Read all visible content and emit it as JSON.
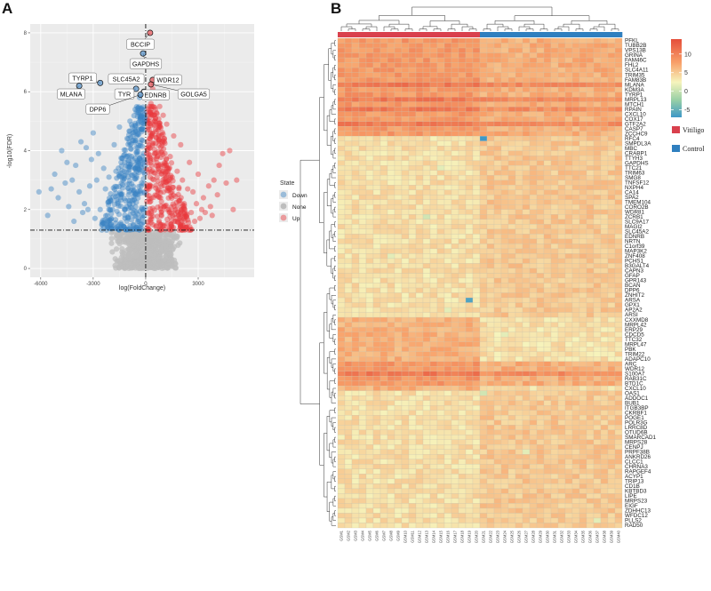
{
  "panel_a": {
    "letter": "A",
    "chart_data": {
      "type": "scatter",
      "xlabel": "log(FoldChange)",
      "ylabel": "-log10(FDR)",
      "xlim": [
        -6600,
        6200
      ],
      "ylim": [
        -0.3,
        8.3
      ],
      "x_ticks": [
        -6000,
        -3000,
        0,
        3000
      ],
      "y_ticks": [
        0,
        2,
        4,
        6,
        8
      ],
      "fdr_threshold": 1.3,
      "fc_threshold": 0,
      "legend": {
        "title": "State",
        "placement": "right",
        "entries": [
          {
            "key": "Down",
            "label": "Down",
            "color": "#3a82c4"
          },
          {
            "key": "None",
            "label": "None",
            "color": "#bdbdbd"
          },
          {
            "key": "Up",
            "label": "Up",
            "color": "#e8373c"
          }
        ]
      },
      "labeled_points": [
        {
          "name": "BCCIP",
          "x": 250,
          "y": 8.0,
          "state": "Up"
        },
        {
          "name": "GAPDHS",
          "x": -150,
          "y": 7.3,
          "state": "Down"
        },
        {
          "name": "TYRP1",
          "x": -2600,
          "y": 6.3,
          "state": "Down"
        },
        {
          "name": "MLANA",
          "x": -3800,
          "y": 6.2,
          "state": "Down"
        },
        {
          "name": "SLC45A2",
          "x": -350,
          "y": 6.4,
          "state": "Down"
        },
        {
          "name": "WDR12",
          "x": 400,
          "y": 6.4,
          "state": "Up"
        },
        {
          "name": "TYR",
          "x": -550,
          "y": 6.1,
          "state": "Down"
        },
        {
          "name": "EDNRB",
          "x": -100,
          "y": 6.0,
          "state": "Down"
        },
        {
          "name": "GOLGA5",
          "x": 300,
          "y": 6.25,
          "state": "Up"
        },
        {
          "name": "DPP6",
          "x": -300,
          "y": 5.9,
          "state": "Down"
        }
      ],
      "series": [
        {
          "name": "Up",
          "x": [
            4800,
            4400,
            5000,
            4200,
            3900,
            3600,
            3300,
            3000,
            2700,
            2500,
            2200,
            2000,
            1800,
            1600,
            1400,
            1200,
            1000,
            800,
            600,
            400,
            4600,
            4100,
            3700,
            3400,
            3100,
            2800,
            2400,
            2100,
            1900,
            1700,
            1500,
            1300,
            1100,
            900,
            700,
            500,
            300,
            3800,
            3200,
            2600,
            2300,
            1950,
            1650,
            1350,
            1050,
            850,
            650,
            450,
            250,
            5200,
            2900,
            1450
          ],
          "y": [
            4.0,
            3.9,
            2.0,
            3.5,
            3.0,
            2.8,
            2.4,
            3.2,
            2.6,
            3.6,
            2.2,
            4.2,
            3.3,
            4.5,
            3.8,
            4.9,
            5.2,
            5.5,
            5.8,
            6.1,
            2.9,
            2.5,
            2.1,
            1.9,
            1.7,
            1.6,
            2.7,
            3.0,
            2.3,
            2.0,
            2.6,
            3.4,
            3.9,
            4.3,
            4.7,
            5.0,
            5.6,
            1.8,
            2.0,
            1.9,
            1.8,
            1.7,
            1.6,
            1.9,
            2.1,
            2.4,
            3.1,
            3.7,
            4.4,
            3.0,
            2.2,
            1.5
          ]
        },
        {
          "name": "Down",
          "x": [
            -6100,
            -5200,
            -4800,
            -4400,
            -4000,
            -3700,
            -3300,
            -3000,
            -2700,
            -2400,
            -2100,
            -1800,
            -1500,
            -1200,
            -900,
            -600,
            -350,
            -5600,
            -5000,
            -4600,
            -4200,
            -3800,
            -3500,
            -3200,
            -2900,
            -2600,
            -2300,
            -2000,
            -1700,
            -1400,
            -1100,
            -800,
            -500,
            -250,
            -4100,
            -3600,
            -3100,
            -2500,
            -2200,
            -1900,
            -1600,
            -1300,
            -1000,
            -700,
            -450,
            -2800,
            -3400,
            -4500,
            -5400
          ],
          "y": [
            2.6,
            3.2,
            4.0,
            2.1,
            3.5,
            4.3,
            2.0,
            4.6,
            3.9,
            3.4,
            3.1,
            4.2,
            4.8,
            3.6,
            5.0,
            5.4,
            5.8,
            1.8,
            2.4,
            2.9,
            3.0,
            2.6,
            2.2,
            2.8,
            1.7,
            2.0,
            2.7,
            2.3,
            3.3,
            2.5,
            2.1,
            3.8,
            4.5,
            5.2,
            1.6,
            1.9,
            3.7,
            1.5,
            1.8,
            2.0,
            2.2,
            3.0,
            1.7,
            2.6,
            3.4,
            3.0,
            4.1,
            3.6,
            2.7
          ]
        }
      ]
    }
  },
  "panel_b": {
    "letter": "B",
    "chart_data": {
      "type": "heatmap",
      "genes": [
        "PFKL",
        "TUBB2B",
        "VPS13B",
        "GRINA",
        "FAM46C",
        "FHL2",
        "SLC4A11",
        "TRIM35",
        "FAM83B",
        "MLANA",
        "KDM3A",
        "TYRP1",
        "MRPL13",
        "MTCH1",
        "RPAIN",
        "CXCL10",
        "COX17",
        "GTF2A2",
        "CASP7",
        "ZCCHC9",
        "RFC4",
        "SMPDL3A",
        "MBC",
        "CRABP1",
        "TTYH3",
        "GAPDHS",
        "TTC21",
        "TRIM63",
        "SMG8",
        "TNFSF12",
        "NXPH4",
        "CA14",
        "SPA2",
        "TMEM104",
        "CORO2B",
        "WDR81",
        "ZCRB1",
        "SLC9A17",
        "MAGI2",
        "SLC45A2",
        "EDNRB",
        "NRTN",
        "C1orf39",
        "MAP3K2",
        "ZNF408",
        "PCHS1",
        "B3GALT4",
        "CAPN3",
        "GFAP",
        "GPR143",
        "BCAN",
        "DPP6",
        "ZNHIT2",
        "ARSA",
        "GPX1",
        "AP2A2",
        "ARSI",
        "CXXMD8",
        "MRPL42",
        "ERP29",
        "CDCD5",
        "TTC32",
        "MRPL47",
        "PBK",
        "TRIM22",
        "ADAPC10",
        "ARC",
        "WDR12",
        "S100A7",
        "RAB31C",
        "BTD1C",
        "CXCL10",
        "OAS1",
        "ADDOC1",
        "BUB1",
        "ITGB3BP",
        "CKRBF1",
        "POGE1",
        "POLR3G",
        "LRRC8D",
        "OTUD6B",
        "SMARCAD1",
        "MRPS28",
        "CENPJ",
        "PRPF38B",
        "ANKRD26",
        "CLCC1",
        "CHRNA3",
        "RAPGEF4",
        "ACYP1",
        "TRIP13",
        "CD1B",
        "KBTBD3",
        "LIPE",
        "MRPS23",
        "EIGF",
        "ZDHHC13",
        "WFDC12",
        "PLLS2",
        "RAD50"
      ],
      "samples": [
        "GSM1",
        "GSM2",
        "GSM3",
        "GSM4",
        "GSM5",
        "GSM6",
        "GSM7",
        "GSM8",
        "GSM9",
        "GSM10",
        "GSM11",
        "GSM12",
        "GSM13",
        "GSM14",
        "GSM15",
        "GSM16",
        "GSM17",
        "GSM18",
        "GSM19",
        "GSM20",
        "GSM21",
        "GSM22",
        "GSM23",
        "GSM24",
        "GSM25",
        "GSM26",
        "GSM27",
        "GSM28",
        "GSM29",
        "GSM30",
        "GSM31",
        "GSM32",
        "GSM33",
        "GSM34",
        "GSM35",
        "GSM36",
        "GSM37",
        "GSM38",
        "GSM39",
        "GSM40"
      ],
      "groups": [
        "Vitiligo",
        "Vitiligo",
        "Vitiligo",
        "Vitiligo",
        "Vitiligo",
        "Vitiligo",
        "Vitiligo",
        "Vitiligo",
        "Vitiligo",
        "Vitiligo",
        "Vitiligo",
        "Vitiligo",
        "Vitiligo",
        "Vitiligo",
        "Vitiligo",
        "Vitiligo",
        "Vitiligo",
        "Vitiligo",
        "Vitiligo",
        "Vitiligo",
        "Control",
        "Control",
        "Control",
        "Control",
        "Control",
        "Control",
        "Control",
        "Control",
        "Control",
        "Control",
        "Control",
        "Control",
        "Control",
        "Control",
        "Control",
        "Control",
        "Control",
        "Control",
        "Control",
        "Control"
      ],
      "legend": {
        "placement": "right",
        "entries": [
          {
            "label": "Vitiligo",
            "color": "#d9404d"
          },
          {
            "label": "Control",
            "color": "#2f7fbf"
          }
        ]
      },
      "colorbar": {
        "min": -7,
        "max": 14,
        "ticks": [
          10,
          5,
          0,
          -5
        ],
        "colors": [
          "#3e98c7",
          "#98cfa6",
          "#f6f4bc",
          "#f8a069",
          "#e54e3a"
        ]
      },
      "high_rows": [
        0,
        1,
        2,
        3,
        4,
        5,
        6,
        7,
        8,
        9,
        10,
        11,
        12,
        13,
        14,
        15,
        16,
        17,
        18,
        19,
        66,
        67,
        68,
        69,
        70
      ],
      "mid_rows": [
        57,
        58,
        59,
        60,
        61,
        62,
        63,
        64,
        65,
        71
      ],
      "dark_rows": [
        9,
        12,
        14,
        17,
        68
      ],
      "outliers": [
        {
          "row": 20,
          "col": 20,
          "value": -7
        },
        {
          "row": 53,
          "col": 18,
          "value": -6
        },
        {
          "row": 26,
          "col": 14,
          "value": 2
        },
        {
          "row": 36,
          "col": 12,
          "value": 1
        },
        {
          "row": 44,
          "col": 7,
          "value": 2
        },
        {
          "row": 60,
          "col": 23,
          "value": 2
        },
        {
          "row": 72,
          "col": 20,
          "value": 1
        },
        {
          "row": 84,
          "col": 26,
          "value": 2
        },
        {
          "row": 98,
          "col": 36,
          "value": 2
        },
        {
          "row": 55,
          "col": 15,
          "value": 2
        }
      ]
    }
  }
}
